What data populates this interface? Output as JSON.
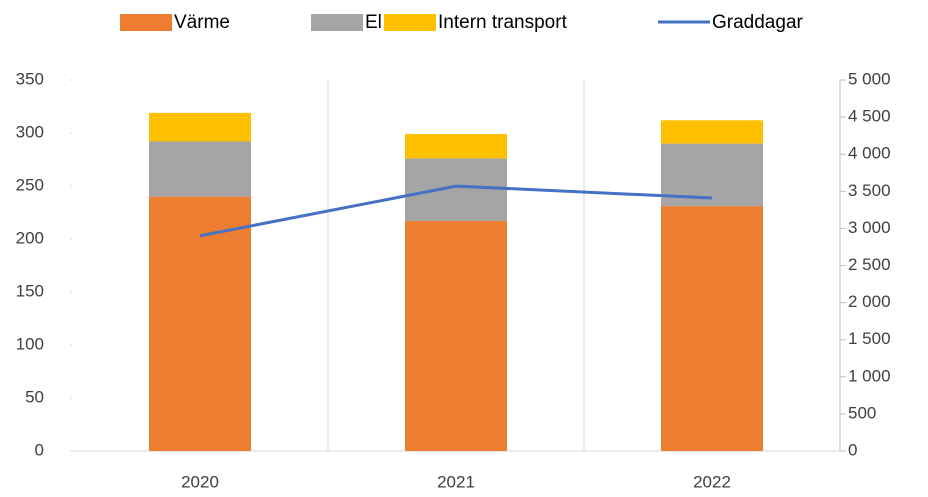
{
  "chart_data": {
    "type": "bar",
    "stacked": true,
    "categories": [
      "2020",
      "2021",
      "2022"
    ],
    "series": [
      {
        "name": "Värme",
        "color": "#ed7d31",
        "values": [
          240,
          217,
          231
        ]
      },
      {
        "name": "El",
        "color": "#a5a5a5",
        "values": [
          52,
          59,
          59
        ]
      },
      {
        "name": "Intern transport",
        "color": "#ffc000",
        "values": [
          27,
          23,
          22
        ]
      },
      {
        "name": "Graddagar",
        "color": "#4472c4",
        "type": "line",
        "axis": "y2",
        "values": [
          2900,
          3570,
          3410
        ]
      }
    ],
    "ylim": [
      0,
      350
    ],
    "yticks": [
      0,
      50,
      100,
      150,
      200,
      250,
      300,
      350
    ],
    "y2lim": [
      0,
      5000
    ],
    "y2ticks": [
      0,
      500,
      {
        "value": 1000,
        "label": "1 000"
      },
      {
        "value": 1500,
        "label": "1 500"
      },
      {
        "value": 2000,
        "label": "2 000"
      },
      {
        "value": 2500,
        "label": "2 500"
      },
      {
        "value": 3000,
        "label": "3 000"
      },
      {
        "value": 3500,
        "label": "3 500"
      },
      {
        "value": 4000,
        "label": "4 000"
      },
      {
        "value": 4500,
        "label": "4 500"
      },
      {
        "value": 5000,
        "label": "5 000"
      }
    ],
    "legend": "top"
  }
}
